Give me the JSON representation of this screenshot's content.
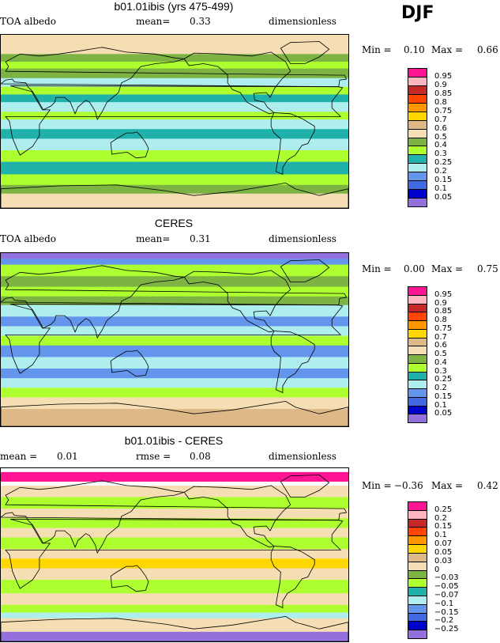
{
  "season": "DJF",
  "panels": [
    {
      "title": "b01.01ibis (yrs 475-499)",
      "left_label": "TOA albedo",
      "mid_label": "mean=",
      "mid_value": "0.33",
      "right_label": "dimensionless",
      "min_label": "Min =",
      "min_value": "0.10",
      "max_label": "Max =",
      "max_value": "0.66",
      "legend_levels": [
        "0.95",
        "0.9",
        "0.85",
        "0.8",
        "0.75",
        "0.7",
        "0.6",
        "0.5",
        "0.4",
        "0.3",
        "0.25",
        "0.2",
        "0.15",
        "0.1",
        "0.05"
      ],
      "legend_colors": [
        "#ff1493",
        "#ffb6c1",
        "#c62828",
        "#ff4500",
        "#ff9800",
        "#ffd700",
        "#deb887",
        "#f5deb3",
        "#7cb342",
        "#adff2f",
        "#20b2aa",
        "#afeeee",
        "#6495ed",
        "#4169e1",
        "#0000cd",
        "#9370db"
      ],
      "bands": [
        {
          "lat": 90,
          "color": "#f5deb3"
        },
        {
          "lat": 80,
          "color": "#f5deb3"
        },
        {
          "lat": 70,
          "color": "#7cb342"
        },
        {
          "lat": 62,
          "color": "#adff2f"
        },
        {
          "lat": 55,
          "color": "#7cb342"
        },
        {
          "lat": 45,
          "color": "#afeeee"
        },
        {
          "lat": 36,
          "color": "#adff2f"
        },
        {
          "lat": 28,
          "color": "#20b2aa"
        },
        {
          "lat": 20,
          "color": "#afeeee"
        },
        {
          "lat": 10,
          "color": "#adff2f"
        },
        {
          "lat": 2,
          "color": "#afeeee"
        },
        {
          "lat": -8,
          "color": "#20b2aa"
        },
        {
          "lat": -18,
          "color": "#afeeee"
        },
        {
          "lat": -30,
          "color": "#adff2f"
        },
        {
          "lat": -42,
          "color": "#20b2aa"
        },
        {
          "lat": -55,
          "color": "#adff2f"
        },
        {
          "lat": -66,
          "color": "#7cb342"
        },
        {
          "lat": -75,
          "color": "#f5deb3"
        }
      ]
    },
    {
      "title": "CERES",
      "left_label": "TOA albedo",
      "mid_label": "mean=",
      "mid_value": "0.31",
      "right_label": "dimensionless",
      "min_label": "Min =",
      "min_value": "0.00",
      "max_label": "Max =",
      "max_value": "0.75",
      "legend_levels": [
        "0.95",
        "0.9",
        "0.85",
        "0.8",
        "0.75",
        "0.7",
        "0.6",
        "0.5",
        "0.4",
        "0.3",
        "0.25",
        "0.2",
        "0.15",
        "0.1",
        "0.05"
      ],
      "legend_colors": [
        "#ff1493",
        "#ffb6c1",
        "#c62828",
        "#ff4500",
        "#ff9800",
        "#ffd700",
        "#deb887",
        "#f5deb3",
        "#7cb342",
        "#adff2f",
        "#20b2aa",
        "#afeeee",
        "#6495ed",
        "#4169e1",
        "#0000cd",
        "#9370db"
      ],
      "bands": [
        {
          "lat": 90,
          "color": "#9370db"
        },
        {
          "lat": 84,
          "color": "#6495ed"
        },
        {
          "lat": 78,
          "color": "#adff2f"
        },
        {
          "lat": 66,
          "color": "#7cb342"
        },
        {
          "lat": 55,
          "color": "#adff2f"
        },
        {
          "lat": 45,
          "color": "#7cb342"
        },
        {
          "lat": 36,
          "color": "#afeeee"
        },
        {
          "lat": 24,
          "color": "#6495ed"
        },
        {
          "lat": 14,
          "color": "#afeeee"
        },
        {
          "lat": 4,
          "color": "#adff2f"
        },
        {
          "lat": -6,
          "color": "#6495ed"
        },
        {
          "lat": -18,
          "color": "#afeeee"
        },
        {
          "lat": -30,
          "color": "#6495ed"
        },
        {
          "lat": -40,
          "color": "#afeeee"
        },
        {
          "lat": -50,
          "color": "#adff2f"
        },
        {
          "lat": -60,
          "color": "#f5deb3"
        },
        {
          "lat": -72,
          "color": "#deb887"
        }
      ]
    },
    {
      "title": "b01.01ibis - CERES",
      "left_label": "mean =",
      "left_value": "0.01",
      "mid_label": "rmse =",
      "mid_value": "0.08",
      "right_label": "dimensionless",
      "min_label": "Min =",
      "min_value": "−0.36",
      "max_label": "Max =",
      "max_value": "0.42",
      "legend_levels": [
        "0.25",
        "0.2",
        "0.15",
        "0.1",
        "0.07",
        "0.05",
        "0.03",
        "0",
        "−0.03",
        "−0.05",
        "−0.07",
        "−0.1",
        "−0.15",
        "−0.2",
        "−0.25"
      ],
      "legend_colors": [
        "#ff1493",
        "#ffb6c1",
        "#c62828",
        "#ff4500",
        "#ff9800",
        "#ffd700",
        "#deb887",
        "#f5deb3",
        "#7cb342",
        "#adff2f",
        "#20b2aa",
        "#afeeee",
        "#6495ed",
        "#4169e1",
        "#0000cd",
        "#9370db"
      ],
      "bands": [
        {
          "lat": 90,
          "color": "#ffffff"
        },
        {
          "lat": 86,
          "color": "#ff1493"
        },
        {
          "lat": 76,
          "color": "#ffffff"
        },
        {
          "lat": 72,
          "color": "#f5deb3"
        },
        {
          "lat": 60,
          "color": "#adff2f"
        },
        {
          "lat": 48,
          "color": "#f5deb3"
        },
        {
          "lat": 38,
          "color": "#adff2f"
        },
        {
          "lat": 28,
          "color": "#f5deb3"
        },
        {
          "lat": 18,
          "color": "#adff2f"
        },
        {
          "lat": 6,
          "color": "#f5deb3"
        },
        {
          "lat": -4,
          "color": "#ffd700"
        },
        {
          "lat": -14,
          "color": "#f5deb3"
        },
        {
          "lat": -26,
          "color": "#adff2f"
        },
        {
          "lat": -40,
          "color": "#f5deb3"
        },
        {
          "lat": -52,
          "color": "#adff2f"
        },
        {
          "lat": -60,
          "color": "#afeeee"
        },
        {
          "lat": -66,
          "color": "#f5deb3"
        },
        {
          "lat": -80,
          "color": "#9370db"
        }
      ]
    }
  ]
}
